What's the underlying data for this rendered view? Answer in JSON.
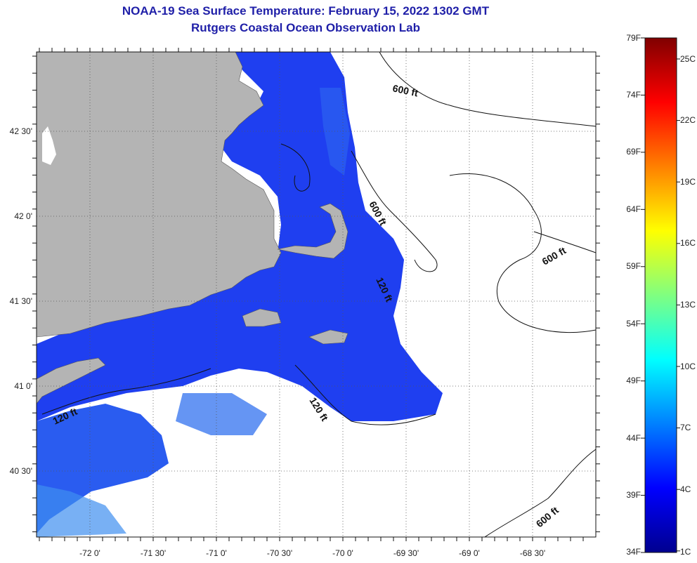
{
  "header": {
    "title": "NOAA-19 Sea Surface Temperature:  February 15, 2022 1302 GMT",
    "subtitle": "Rutgers Coastal Ocean Observation Lab"
  },
  "map": {
    "lon_labels": [
      "-72 0'",
      "-71 30'",
      "-71 0'",
      "-70 30'",
      "-70 0'",
      "-69 30'",
      "-69 0'",
      "-68 30'"
    ],
    "lat_labels": [
      "42 30'",
      "42 0'",
      "41 30'",
      "41 0'",
      "40 30'"
    ],
    "contour_labels": [
      {
        "text": "600 ft",
        "rotate": 12
      },
      {
        "text": "600 ft",
        "rotate": 62
      },
      {
        "text": "600 ft",
        "rotate": -30
      },
      {
        "text": "120 ft",
        "rotate": 65
      },
      {
        "text": "120 ft",
        "rotate": 58
      },
      {
        "text": "120 ft",
        "rotate": -25
      },
      {
        "text": "600 ft",
        "rotate": -40
      }
    ],
    "colors": {
      "land": "#b4b4b4",
      "cloud": "#ffffff",
      "water_cold": "#1f3ff0",
      "water_mid": "#2a5cf0",
      "water_warm": "#3f8ff0"
    }
  },
  "colorbar": {
    "fahrenheit": [
      "79F",
      "74F",
      "69F",
      "64F",
      "59F",
      "54F",
      "49F",
      "44F",
      "39F",
      "34F"
    ],
    "celsius": [
      "25C",
      "22C",
      "19C",
      "16C",
      "13C",
      "10C",
      "7C",
      "4C",
      "1C"
    ],
    "stops": [
      "#00008f",
      "#0000ff",
      "#0080ff",
      "#00ffff",
      "#80ff80",
      "#ffff00",
      "#ff8000",
      "#ff0000",
      "#800000"
    ]
  }
}
